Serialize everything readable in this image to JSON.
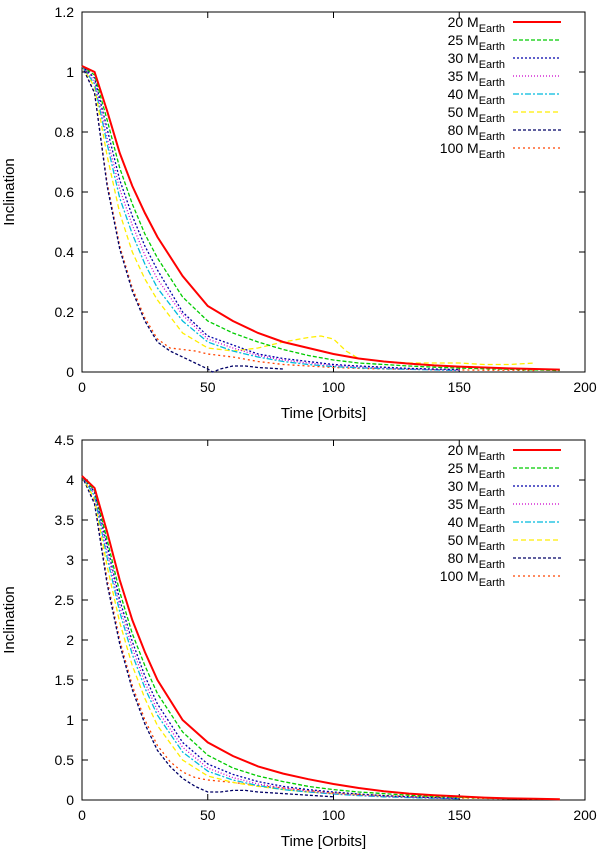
{
  "chart_data": [
    {
      "type": "line",
      "title": "",
      "xlabel": "Time [Orbits]",
      "ylabel": "Inclination",
      "xlim": [
        0,
        200
      ],
      "ylim": [
        0,
        1.2
      ],
      "xticks": [
        "0",
        "50",
        "100",
        "150",
        "200"
      ],
      "yticks": [
        "0",
        "0.2",
        "0.4",
        "0.6",
        "0.8",
        "1",
        "1.2"
      ],
      "legend_position": "top-right",
      "series": [
        {
          "name": "20 M",
          "sub": "Earth",
          "color": "#ff0000",
          "dash": "",
          "x": [
            0,
            5,
            10,
            15,
            20,
            25,
            30,
            40,
            50,
            60,
            70,
            80,
            90,
            100,
            110,
            120,
            130,
            140,
            150,
            160,
            170,
            180,
            190
          ],
          "y": [
            1.02,
            1.0,
            0.87,
            0.73,
            0.62,
            0.53,
            0.45,
            0.32,
            0.22,
            0.17,
            0.13,
            0.1,
            0.08,
            0.06,
            0.045,
            0.035,
            0.028,
            0.022,
            0.018,
            0.015,
            0.012,
            0.01,
            0.008
          ]
        },
        {
          "name": "25 M",
          "sub": "Earth",
          "color": "#00cc00",
          "dash": "4,2",
          "x": [
            0,
            5,
            10,
            15,
            20,
            25,
            30,
            40,
            50,
            60,
            70,
            80,
            90,
            100,
            110,
            120,
            130,
            140,
            150,
            160,
            170,
            180,
            190
          ],
          "y": [
            1.02,
            0.99,
            0.84,
            0.68,
            0.56,
            0.46,
            0.38,
            0.25,
            0.17,
            0.13,
            0.1,
            0.075,
            0.055,
            0.04,
            0.03,
            0.025,
            0.02,
            0.016,
            0.013,
            0.011,
            0.009,
            0.007,
            0.005
          ]
        },
        {
          "name": "30 M",
          "sub": "Earth",
          "color": "#0000aa",
          "dash": "2,2",
          "x": [
            0,
            5,
            10,
            15,
            20,
            25,
            30,
            40,
            50,
            60,
            70,
            80,
            90,
            100,
            110,
            120,
            130,
            140,
            150
          ],
          "y": [
            1.02,
            0.98,
            0.81,
            0.64,
            0.52,
            0.42,
            0.34,
            0.2,
            0.12,
            0.09,
            0.06,
            0.045,
            0.035,
            0.025,
            0.02,
            0.016,
            0.012,
            0.01,
            0.008
          ]
        },
        {
          "name": "35 M",
          "sub": "Earth",
          "color": "#cc00cc",
          "dash": "1,2",
          "x": [
            0,
            5,
            10,
            15,
            20,
            25,
            30,
            40,
            50,
            60,
            70,
            80,
            90,
            100,
            110,
            120,
            130,
            140,
            150
          ],
          "y": [
            1.02,
            0.97,
            0.78,
            0.61,
            0.49,
            0.39,
            0.31,
            0.19,
            0.11,
            0.08,
            0.055,
            0.04,
            0.03,
            0.022,
            0.017,
            0.013,
            0.01,
            0.008,
            0.006
          ]
        },
        {
          "name": "40 M",
          "sub": "Earth",
          "color": "#00bbdd",
          "dash": "6,2,2,2",
          "x": [
            0,
            5,
            10,
            15,
            20,
            25,
            30,
            40,
            50,
            60,
            70,
            80,
            90,
            100,
            110,
            120,
            130,
            140,
            150
          ],
          "y": [
            1.02,
            0.96,
            0.76,
            0.58,
            0.46,
            0.36,
            0.28,
            0.17,
            0.1,
            0.07,
            0.05,
            0.035,
            0.025,
            0.018,
            0.014,
            0.011,
            0.009,
            0.007,
            0.005
          ]
        },
        {
          "name": "50 M",
          "sub": "Earth",
          "color": "#ffee00",
          "dash": "5,3",
          "x": [
            0,
            5,
            10,
            15,
            20,
            25,
            30,
            40,
            50,
            60,
            70,
            80,
            90,
            95,
            100,
            105,
            110,
            120,
            130,
            140,
            150,
            160,
            170,
            180
          ],
          "y": [
            1.02,
            0.95,
            0.72,
            0.53,
            0.4,
            0.31,
            0.24,
            0.13,
            0.08,
            0.07,
            0.08,
            0.1,
            0.115,
            0.12,
            0.11,
            0.07,
            0.045,
            0.035,
            0.03,
            0.03,
            0.03,
            0.025,
            0.025,
            0.03
          ]
        },
        {
          "name": "80 M",
          "sub": "Earth",
          "color": "#000066",
          "dash": "3,2",
          "x": [
            0,
            5,
            10,
            15,
            20,
            25,
            30,
            35,
            40,
            45,
            50,
            52,
            55,
            60,
            65,
            70,
            80
          ],
          "y": [
            1.02,
            0.93,
            0.62,
            0.41,
            0.27,
            0.17,
            0.1,
            0.07,
            0.05,
            0.03,
            0.01,
            0.0,
            0.01,
            0.02,
            0.02,
            0.015,
            0.01
          ]
        },
        {
          "name": "100 M",
          "sub": "Earth",
          "color": "#ff4400",
          "dash": "2,3",
          "x": [
            0,
            5,
            10,
            15,
            20,
            25,
            30,
            35,
            40,
            45,
            50,
            60,
            70,
            80,
            90,
            100,
            110,
            120,
            130,
            140,
            150,
            160,
            170,
            180
          ],
          "y": [
            1.02,
            0.93,
            0.63,
            0.42,
            0.28,
            0.18,
            0.11,
            0.08,
            0.075,
            0.07,
            0.06,
            0.05,
            0.035,
            0.025,
            0.02,
            0.015,
            0.012,
            0.01,
            0.009,
            0.008,
            0.007,
            0.006,
            0.006,
            0.005
          ]
        }
      ]
    },
    {
      "type": "line",
      "title": "",
      "xlabel": "Time [Orbits]",
      "ylabel": "Inclination",
      "xlim": [
        0,
        200
      ],
      "ylim": [
        0,
        4.5
      ],
      "xticks": [
        "0",
        "50",
        "100",
        "150",
        "200"
      ],
      "yticks": [
        "0",
        "0.5",
        "1",
        "1.5",
        "2",
        "2.5",
        "3",
        "3.5",
        "4",
        "4.5"
      ],
      "legend_position": "top-right",
      "series": [
        {
          "name": "20 M",
          "sub": "Earth",
          "color": "#ff0000",
          "dash": "",
          "x": [
            0,
            5,
            10,
            15,
            20,
            25,
            30,
            40,
            50,
            60,
            70,
            80,
            90,
            100,
            110,
            120,
            130,
            140,
            150,
            160,
            170,
            180,
            190
          ],
          "y": [
            4.05,
            3.9,
            3.35,
            2.75,
            2.25,
            1.85,
            1.5,
            1.0,
            0.72,
            0.55,
            0.42,
            0.33,
            0.26,
            0.2,
            0.15,
            0.11,
            0.08,
            0.06,
            0.045,
            0.03,
            0.02,
            0.015,
            0.01
          ]
        },
        {
          "name": "25 M",
          "sub": "Earth",
          "color": "#00cc00",
          "dash": "4,2",
          "x": [
            0,
            5,
            10,
            15,
            20,
            25,
            30,
            40,
            50,
            60,
            70,
            80,
            90,
            100,
            110,
            120,
            130,
            140,
            150,
            160,
            170,
            180,
            190
          ],
          "y": [
            4.05,
            3.87,
            3.25,
            2.6,
            2.08,
            1.68,
            1.33,
            0.85,
            0.56,
            0.4,
            0.3,
            0.23,
            0.17,
            0.13,
            0.1,
            0.08,
            0.06,
            0.045,
            0.035,
            0.025,
            0.018,
            0.012,
            0.008
          ]
        },
        {
          "name": "30 M",
          "sub": "Earth",
          "color": "#0000aa",
          "dash": "2,2",
          "x": [
            0,
            5,
            10,
            15,
            20,
            25,
            30,
            40,
            50,
            60,
            70,
            80,
            90,
            100,
            110,
            120,
            130,
            140,
            150
          ],
          "y": [
            4.05,
            3.85,
            3.18,
            2.5,
            1.98,
            1.55,
            1.2,
            0.72,
            0.45,
            0.32,
            0.23,
            0.17,
            0.13,
            0.1,
            0.075,
            0.055,
            0.04,
            0.03,
            0.02
          ]
        },
        {
          "name": "35 M",
          "sub": "Earth",
          "color": "#cc00cc",
          "dash": "1,2",
          "x": [
            0,
            5,
            10,
            15,
            20,
            25,
            30,
            40,
            50,
            60,
            70,
            80,
            90,
            100,
            110,
            120,
            130,
            140,
            150
          ],
          "y": [
            4.05,
            3.83,
            3.1,
            2.42,
            1.9,
            1.47,
            1.12,
            0.66,
            0.4,
            0.28,
            0.2,
            0.15,
            0.11,
            0.08,
            0.06,
            0.045,
            0.035,
            0.025,
            0.018
          ]
        },
        {
          "name": "40 M",
          "sub": "Earth",
          "color": "#00bbdd",
          "dash": "6,2,2,2",
          "x": [
            0,
            5,
            10,
            15,
            20,
            25,
            30,
            40,
            50,
            60,
            70,
            80,
            90,
            100,
            110,
            120,
            130,
            140,
            150
          ],
          "y": [
            4.05,
            3.8,
            3.03,
            2.35,
            1.82,
            1.4,
            1.06,
            0.6,
            0.36,
            0.25,
            0.18,
            0.13,
            0.1,
            0.075,
            0.055,
            0.04,
            0.03,
            0.022,
            0.015
          ]
        },
        {
          "name": "50 M",
          "sub": "Earth",
          "color": "#ffee00",
          "dash": "5,3",
          "x": [
            0,
            5,
            10,
            15,
            20,
            25,
            30,
            40,
            50,
            60,
            70,
            80,
            90,
            100,
            110,
            120,
            130,
            140,
            150,
            160,
            170,
            180,
            190
          ],
          "y": [
            4.05,
            3.76,
            2.92,
            2.22,
            1.68,
            1.27,
            0.93,
            0.5,
            0.3,
            0.22,
            0.17,
            0.13,
            0.1,
            0.08,
            0.065,
            0.05,
            0.04,
            0.035,
            0.03,
            0.025,
            0.02,
            0.015,
            0.01
          ]
        },
        {
          "name": "80 M",
          "sub": "Earth",
          "color": "#000066",
          "dash": "3,2",
          "x": [
            0,
            5,
            10,
            15,
            20,
            25,
            30,
            35,
            40,
            45,
            50,
            55,
            60,
            65,
            70,
            80,
            90,
            100
          ],
          "y": [
            4.05,
            3.7,
            2.7,
            1.95,
            1.38,
            0.95,
            0.62,
            0.42,
            0.27,
            0.17,
            0.1,
            0.1,
            0.12,
            0.12,
            0.1,
            0.08,
            0.06,
            0.04
          ]
        },
        {
          "name": "100 M",
          "sub": "Earth",
          "color": "#ff4400",
          "dash": "2,3",
          "x": [
            0,
            5,
            10,
            15,
            20,
            25,
            30,
            35,
            40,
            45,
            50,
            60,
            70,
            80,
            90,
            100,
            110,
            120,
            130,
            140,
            150,
            160,
            170,
            180
          ],
          "y": [
            4.05,
            3.72,
            2.75,
            2.0,
            1.43,
            1.0,
            0.68,
            0.48,
            0.35,
            0.28,
            0.25,
            0.22,
            0.18,
            0.15,
            0.12,
            0.09,
            0.07,
            0.055,
            0.045,
            0.035,
            0.025,
            0.02,
            0.015,
            0.01
          ]
        }
      ]
    }
  ]
}
